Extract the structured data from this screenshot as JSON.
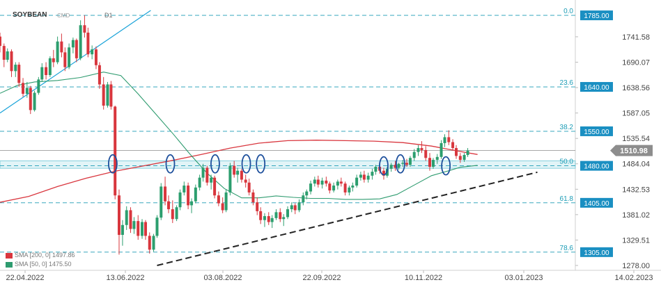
{
  "header": {
    "symbol": "SOYBEAN",
    "type": "CMD",
    "timeframe": "D1"
  },
  "legend": [
    {
      "label": "SMA [200, 0] 1497.86",
      "color": "#d9363e"
    },
    {
      "label": "SMA [50, 0] 1475.50",
      "color": "#2e9b6f"
    }
  ],
  "chart_data": {
    "type": "candlestick",
    "ylim": [
      1278.0,
      1795.0
    ],
    "y_ticks": [
      "1741.58",
      "1690.07",
      "1638.56",
      "1587.05",
      "1535.54",
      "1484.04",
      "1432.53",
      "1381.02",
      "1329.51",
      "1278.00"
    ],
    "x_ticks": [
      "22.04.2022",
      "13.06.2022",
      "03.08.2022",
      "22.09.2022",
      "10.11.2022",
      "03.01.2023",
      "14.02.2023"
    ],
    "current_price": {
      "label": "1510.98",
      "value": 1510.98
    },
    "support_zone": [
      1475.0,
      1490.0
    ],
    "fib_levels": [
      {
        "ratio": "0.0",
        "price_label": "1785.00",
        "value": 1785.0
      },
      {
        "ratio": "23.6",
        "price_label": "1640.00",
        "value": 1640.0
      },
      {
        "ratio": "38.2",
        "price_label": "1550.00",
        "value": 1550.0
      },
      {
        "ratio": "50.0",
        "price_label": "1480.00",
        "value": 1480.0
      },
      {
        "ratio": "61.8",
        "price_label": "1405.00",
        "value": 1405.0
      },
      {
        "ratio": "78.6",
        "price_label": "1305.00",
        "value": 1305.0
      }
    ],
    "markers": [
      {
        "x": 0.196,
        "y": 1484
      },
      {
        "x": 0.296,
        "y": 1484
      },
      {
        "x": 0.374,
        "y": 1484
      },
      {
        "x": 0.428,
        "y": 1484
      },
      {
        "x": 0.453,
        "y": 1484
      },
      {
        "x": 0.667,
        "y": 1480
      },
      {
        "x": 0.696,
        "y": 1484
      },
      {
        "x": 0.775,
        "y": 1480
      }
    ],
    "trendlines": [
      {
        "name": "uptrend-2022",
        "style": "solid",
        "color": "#1aa3d9",
        "from": [
          0.0,
          1587.0
        ],
        "to": [
          0.262,
          1795.0
        ]
      },
      {
        "name": "ascending-support",
        "style": "dashed",
        "color": "#222222",
        "from": [
          0.273,
          1278.0
        ],
        "to": [
          0.934,
          1467.0
        ]
      }
    ],
    "sma200": [
      [
        0.0,
        1406
      ],
      [
        0.05,
        1418
      ],
      [
        0.1,
        1438
      ],
      [
        0.15,
        1455
      ],
      [
        0.2,
        1469
      ],
      [
        0.25,
        1480
      ],
      [
        0.3,
        1491
      ],
      [
        0.35,
        1503
      ],
      [
        0.4,
        1516
      ],
      [
        0.45,
        1526
      ],
      [
        0.5,
        1531
      ],
      [
        0.55,
        1532
      ],
      [
        0.6,
        1531
      ],
      [
        0.65,
        1530
      ],
      [
        0.7,
        1527
      ],
      [
        0.75,
        1520
      ],
      [
        0.8,
        1509
      ],
      [
        0.83,
        1503
      ]
    ],
    "sma50": [
      [
        0.0,
        1627
      ],
      [
        0.03,
        1643
      ],
      [
        0.06,
        1650
      ],
      [
        0.1,
        1653
      ],
      [
        0.14,
        1659
      ],
      [
        0.18,
        1670
      ],
      [
        0.21,
        1663
      ],
      [
        0.24,
        1626
      ],
      [
        0.27,
        1586
      ],
      [
        0.3,
        1546
      ],
      [
        0.33,
        1504
      ],
      [
        0.36,
        1465
      ],
      [
        0.39,
        1434
      ],
      [
        0.42,
        1415
      ],
      [
        0.45,
        1415
      ],
      [
        0.48,
        1419
      ],
      [
        0.51,
        1416
      ],
      [
        0.54,
        1414
      ],
      [
        0.57,
        1414
      ],
      [
        0.6,
        1412
      ],
      [
        0.63,
        1412
      ],
      [
        0.66,
        1413
      ],
      [
        0.69,
        1422
      ],
      [
        0.72,
        1441
      ],
      [
        0.75,
        1460
      ],
      [
        0.78,
        1470
      ],
      [
        0.8,
        1477
      ],
      [
        0.83,
        1481
      ]
    ],
    "candles": [
      [
        0.0,
        1742,
        1750,
        1710,
        1723
      ],
      [
        0.007,
        1723,
        1728,
        1680,
        1695
      ],
      [
        0.013,
        1695,
        1718,
        1690,
        1712
      ],
      [
        0.02,
        1712,
        1716,
        1660,
        1672
      ],
      [
        0.027,
        1672,
        1690,
        1660,
        1685
      ],
      [
        0.033,
        1685,
        1690,
        1640,
        1648
      ],
      [
        0.04,
        1648,
        1658,
        1620,
        1626
      ],
      [
        0.047,
        1626,
        1650,
        1618,
        1638
      ],
      [
        0.053,
        1638,
        1642,
        1585,
        1593
      ],
      [
        0.06,
        1593,
        1632,
        1590,
        1628
      ],
      [
        0.067,
        1628,
        1660,
        1624,
        1655
      ],
      [
        0.073,
        1655,
        1688,
        1650,
        1680
      ],
      [
        0.08,
        1680,
        1690,
        1655,
        1664
      ],
      [
        0.087,
        1664,
        1702,
        1660,
        1698
      ],
      [
        0.093,
        1698,
        1715,
        1680,
        1690
      ],
      [
        0.1,
        1690,
        1742,
        1686,
        1732
      ],
      [
        0.107,
        1732,
        1748,
        1700,
        1710
      ],
      [
        0.113,
        1710,
        1720,
        1672,
        1680
      ],
      [
        0.12,
        1680,
        1728,
        1676,
        1720
      ],
      [
        0.127,
        1720,
        1740,
        1708,
        1735
      ],
      [
        0.133,
        1735,
        1738,
        1690,
        1698
      ],
      [
        0.14,
        1698,
        1775,
        1694,
        1765
      ],
      [
        0.147,
        1765,
        1785,
        1740,
        1750
      ],
      [
        0.153,
        1750,
        1760,
        1700,
        1706
      ],
      [
        0.16,
        1706,
        1724,
        1696,
        1716
      ],
      [
        0.167,
        1716,
        1722,
        1676,
        1684
      ],
      [
        0.173,
        1684,
        1690,
        1636,
        1645
      ],
      [
        0.18,
        1645,
        1660,
        1594,
        1602
      ],
      [
        0.187,
        1602,
        1650,
        1598,
        1645
      ],
      [
        0.193,
        1645,
        1652,
        1594,
        1600
      ],
      [
        0.2,
        1600,
        1602,
        1412,
        1420
      ],
      [
        0.207,
        1420,
        1432,
        1300,
        1340
      ],
      [
        0.213,
        1340,
        1370,
        1318,
        1360
      ],
      [
        0.22,
        1360,
        1398,
        1350,
        1390
      ],
      [
        0.227,
        1390,
        1396,
        1344,
        1352
      ],
      [
        0.233,
        1352,
        1376,
        1342,
        1368
      ],
      [
        0.24,
        1368,
        1380,
        1330,
        1338
      ],
      [
        0.247,
        1338,
        1372,
        1332,
        1366
      ],
      [
        0.253,
        1366,
        1370,
        1330,
        1338
      ],
      [
        0.26,
        1338,
        1345,
        1302,
        1310
      ],
      [
        0.267,
        1310,
        1342,
        1306,
        1338
      ],
      [
        0.273,
        1338,
        1380,
        1334,
        1375
      ],
      [
        0.28,
        1375,
        1445,
        1370,
        1438
      ],
      [
        0.287,
        1438,
        1458,
        1400,
        1408
      ],
      [
        0.293,
        1408,
        1420,
        1384,
        1392
      ],
      [
        0.3,
        1392,
        1410,
        1364,
        1372
      ],
      [
        0.307,
        1372,
        1400,
        1368,
        1396
      ],
      [
        0.313,
        1396,
        1432,
        1390,
        1426
      ],
      [
        0.32,
        1426,
        1448,
        1420,
        1440
      ],
      [
        0.327,
        1440,
        1446,
        1392,
        1400
      ],
      [
        0.333,
        1400,
        1414,
        1384,
        1408
      ],
      [
        0.34,
        1408,
        1442,
        1404,
        1436
      ],
      [
        0.347,
        1436,
        1462,
        1430,
        1456
      ],
      [
        0.353,
        1456,
        1484,
        1448,
        1476
      ],
      [
        0.36,
        1476,
        1480,
        1440,
        1446
      ],
      [
        0.367,
        1446,
        1462,
        1432,
        1456
      ],
      [
        0.373,
        1456,
        1460,
        1414,
        1420
      ],
      [
        0.38,
        1420,
        1428,
        1398,
        1404
      ],
      [
        0.387,
        1404,
        1416,
        1384,
        1390
      ],
      [
        0.393,
        1390,
        1432,
        1386,
        1426
      ],
      [
        0.4,
        1426,
        1486,
        1420,
        1480
      ],
      [
        0.407,
        1480,
        1490,
        1456,
        1462
      ],
      [
        0.413,
        1462,
        1476,
        1446,
        1470
      ],
      [
        0.42,
        1470,
        1474,
        1446,
        1452
      ],
      [
        0.427,
        1452,
        1462,
        1436,
        1446
      ],
      [
        0.433,
        1446,
        1454,
        1420,
        1426
      ],
      [
        0.44,
        1426,
        1432,
        1400,
        1406
      ],
      [
        0.447,
        1406,
        1416,
        1380,
        1388
      ],
      [
        0.453,
        1388,
        1396,
        1362,
        1370
      ],
      [
        0.46,
        1370,
        1384,
        1356,
        1378
      ],
      [
        0.467,
        1378,
        1386,
        1360,
        1366
      ],
      [
        0.473,
        1366,
        1380,
        1354,
        1374
      ],
      [
        0.48,
        1374,
        1392,
        1370,
        1386
      ],
      [
        0.487,
        1386,
        1394,
        1366,
        1372
      ],
      [
        0.493,
        1372,
        1382,
        1358,
        1376
      ],
      [
        0.5,
        1376,
        1398,
        1372,
        1392
      ],
      [
        0.507,
        1392,
        1406,
        1386,
        1400
      ],
      [
        0.513,
        1400,
        1404,
        1382,
        1390
      ],
      [
        0.52,
        1390,
        1412,
        1386,
        1406
      ],
      [
        0.527,
        1406,
        1426,
        1400,
        1420
      ],
      [
        0.533,
        1420,
        1432,
        1412,
        1428
      ],
      [
        0.54,
        1428,
        1450,
        1422,
        1444
      ],
      [
        0.547,
        1444,
        1458,
        1438,
        1452
      ],
      [
        0.553,
        1452,
        1460,
        1436,
        1442
      ],
      [
        0.56,
        1442,
        1456,
        1434,
        1450
      ],
      [
        0.567,
        1450,
        1458,
        1438,
        1444
      ],
      [
        0.573,
        1444,
        1448,
        1424,
        1430
      ],
      [
        0.58,
        1430,
        1446,
        1426,
        1440
      ],
      [
        0.587,
        1440,
        1452,
        1432,
        1448
      ],
      [
        0.593,
        1448,
        1456,
        1438,
        1444
      ],
      [
        0.6,
        1444,
        1448,
        1420,
        1426
      ],
      [
        0.607,
        1426,
        1440,
        1420,
        1436
      ],
      [
        0.613,
        1436,
        1446,
        1428,
        1440
      ],
      [
        0.62,
        1440,
        1462,
        1436,
        1456
      ],
      [
        0.627,
        1456,
        1468,
        1450,
        1462
      ],
      [
        0.633,
        1462,
        1470,
        1446,
        1452
      ],
      [
        0.64,
        1452,
        1466,
        1446,
        1460
      ],
      [
        0.647,
        1460,
        1474,
        1452,
        1468
      ],
      [
        0.653,
        1468,
        1482,
        1462,
        1478
      ],
      [
        0.66,
        1478,
        1484,
        1464,
        1470
      ],
      [
        0.667,
        1470,
        1476,
        1452,
        1460
      ],
      [
        0.673,
        1460,
        1478,
        1456,
        1474
      ],
      [
        0.68,
        1474,
        1486,
        1468,
        1482
      ],
      [
        0.687,
        1482,
        1490,
        1470,
        1476
      ],
      [
        0.693,
        1476,
        1486,
        1472,
        1484
      ],
      [
        0.7,
        1484,
        1492,
        1478,
        1486
      ],
      [
        0.707,
        1486,
        1494,
        1478,
        1482
      ],
      [
        0.713,
        1482,
        1500,
        1478,
        1496
      ],
      [
        0.72,
        1496,
        1514,
        1490,
        1508
      ],
      [
        0.727,
        1508,
        1522,
        1500,
        1516
      ],
      [
        0.733,
        1516,
        1530,
        1506,
        1512
      ],
      [
        0.74,
        1512,
        1520,
        1490,
        1496
      ],
      [
        0.747,
        1496,
        1506,
        1470,
        1478
      ],
      [
        0.753,
        1478,
        1496,
        1474,
        1492
      ],
      [
        0.76,
        1492,
        1504,
        1484,
        1498
      ],
      [
        0.767,
        1498,
        1532,
        1494,
        1526
      ],
      [
        0.773,
        1526,
        1544,
        1518,
        1538
      ],
      [
        0.78,
        1538,
        1552,
        1522,
        1528
      ],
      [
        0.787,
        1528,
        1534,
        1512,
        1516
      ],
      [
        0.793,
        1516,
        1522,
        1494,
        1500
      ],
      [
        0.8,
        1500,
        1506,
        1486,
        1492
      ],
      [
        0.807,
        1492,
        1506,
        1488,
        1502
      ],
      [
        0.813,
        1502,
        1516,
        1498,
        1511
      ]
    ]
  }
}
